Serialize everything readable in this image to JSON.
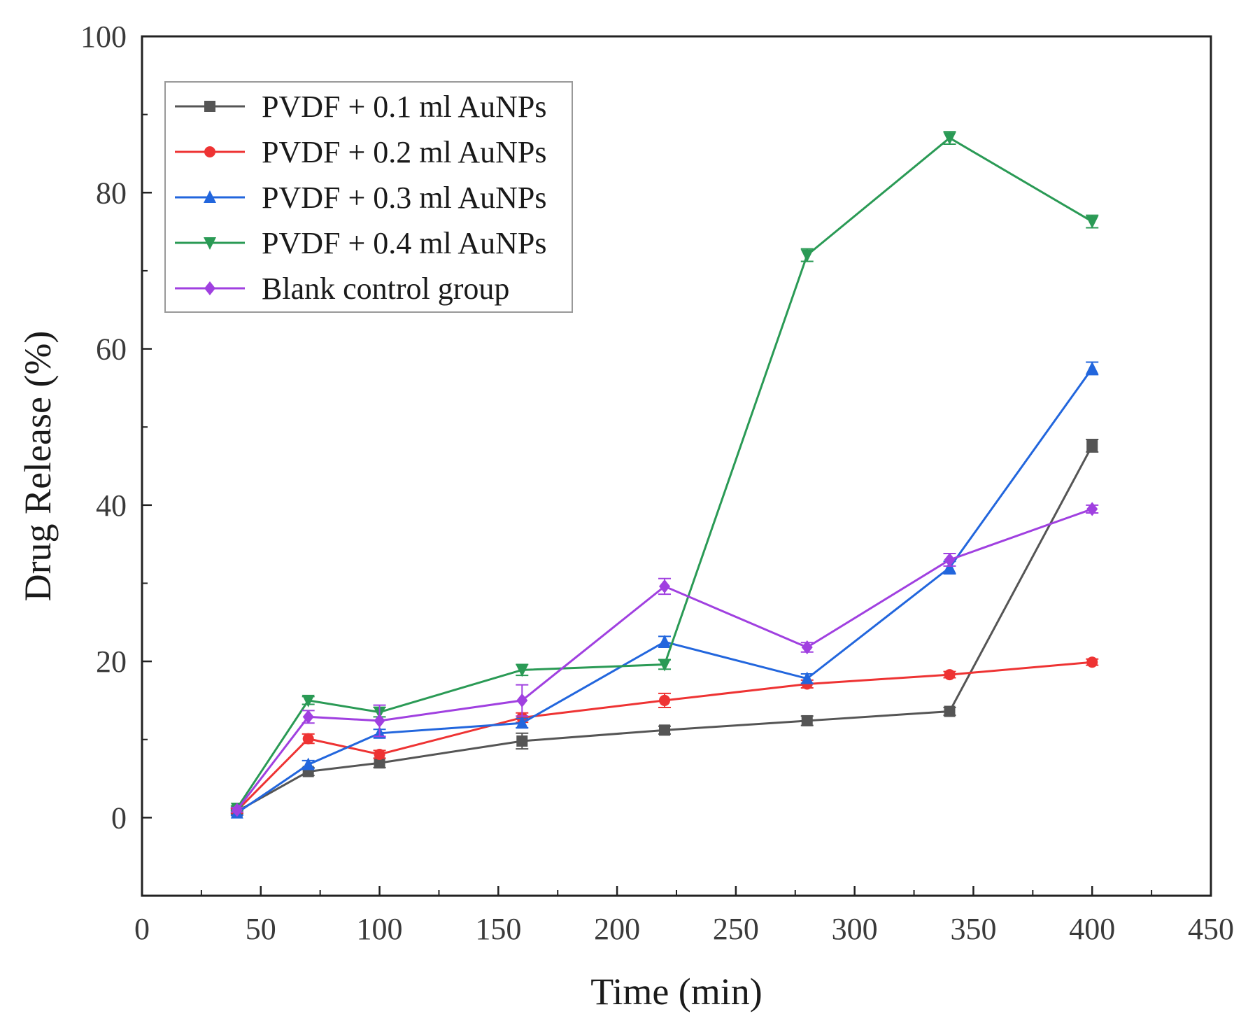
{
  "chart_data": {
    "type": "line",
    "xlabel": "Time (min)",
    "ylabel": "Drug Release (%)",
    "xlim": [
      0,
      450
    ],
    "ylim": [
      -10,
      100
    ],
    "xticks": [
      0,
      50,
      100,
      150,
      200,
      250,
      300,
      350,
      400,
      450
    ],
    "yticks": [
      0,
      20,
      40,
      60,
      80,
      100
    ],
    "grid": false,
    "legend_position": "top-left",
    "x": [
      40,
      70,
      100,
      160,
      220,
      280,
      340,
      400
    ],
    "series": [
      {
        "name": "PVDF + 0.1 ml AuNPs",
        "color": "#555555",
        "marker": "square",
        "values": [
          0.8,
          5.9,
          7.0,
          9.8,
          11.2,
          12.4,
          13.6,
          47.6
        ],
        "errors": [
          0.3,
          0.5,
          0.6,
          1.0,
          0.5,
          0.6,
          0.5,
          0.8
        ]
      },
      {
        "name": "PVDF + 0.2 ml AuNPs",
        "color": "#ee3333",
        "marker": "circle",
        "values": [
          0.9,
          10.1,
          8.1,
          12.8,
          15.0,
          17.1,
          18.3,
          19.9
        ],
        "errors": [
          0.3,
          0.6,
          0.5,
          0.6,
          0.9,
          0.5,
          0.4,
          0.4
        ]
      },
      {
        "name": "PVDF + 0.3 ml AuNPs",
        "color": "#2266dd",
        "marker": "triangle-up",
        "values": [
          0.6,
          6.8,
          10.8,
          12.1,
          22.5,
          17.8,
          32.0,
          57.5
        ],
        "errors": [
          0.3,
          0.5,
          0.5,
          0.6,
          0.7,
          0.6,
          0.8,
          0.8
        ]
      },
      {
        "name": "PVDF + 0.4 ml AuNPs",
        "color": "#2a9a55",
        "marker": "triangle-down",
        "values": [
          1.2,
          15.0,
          13.5,
          18.9,
          19.6,
          72.0,
          87.0,
          76.3
        ],
        "errors": [
          0.3,
          0.5,
          0.6,
          0.7,
          0.6,
          0.8,
          0.8,
          0.8
        ]
      },
      {
        "name": "Blank control group",
        "color": "#a040e0",
        "marker": "diamond",
        "values": [
          1.0,
          12.9,
          12.4,
          15.0,
          29.6,
          21.8,
          33.0,
          39.5
        ],
        "errors": [
          0.3,
          0.8,
          2.0,
          2.0,
          1.0,
          0.6,
          0.8,
          0.5
        ]
      }
    ]
  }
}
